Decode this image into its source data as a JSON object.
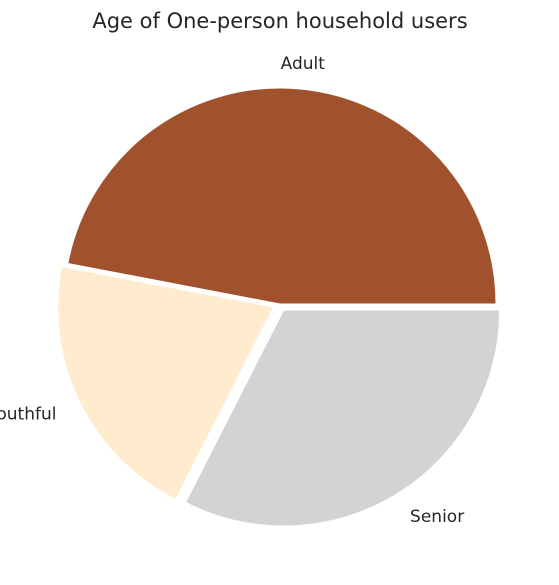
{
  "chart_data": {
    "type": "pie",
    "title": "Age of One-person household users",
    "slices": [
      {
        "label": "Adult",
        "value": 47.0,
        "color": "#a0522d",
        "explode": false
      },
      {
        "label": "Youthful",
        "value": 20.5,
        "color": "#ffebcd",
        "explode": true
      },
      {
        "label": "Senior",
        "value": 32.5,
        "color": "#d3d3d3",
        "explode": true
      }
    ],
    "start_angle_deg": 0,
    "direction": "counterclockwise",
    "legend": "none"
  }
}
